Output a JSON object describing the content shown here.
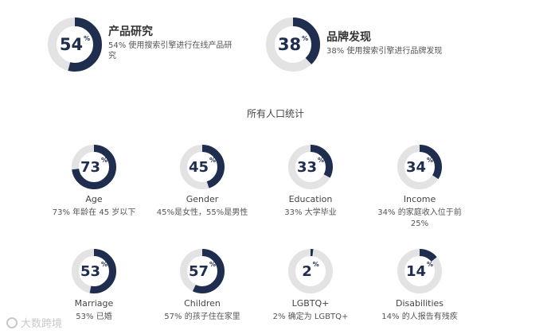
{
  "colors": {
    "accent": "#1f2d4f",
    "track": "#e3e3e3"
  },
  "top_stats": [
    {
      "value": 54,
      "title": "产品研究",
      "desc_line1": "54% 使用搜索引擎进行在线产品研",
      "desc_line2": "究"
    },
    {
      "value": 38,
      "title": "品牌发现",
      "desc_line1": "38% 使用搜索引擎进行品牌发现",
      "desc_line2": ""
    }
  ],
  "section_title": "所有人口统计",
  "stats": [
    {
      "value": 73,
      "label": "Age",
      "desc_line1": "73% 年龄在 45 岁以下",
      "desc_line2": ""
    },
    {
      "value": 45,
      "label": "Gender",
      "desc_line1": "45%是女性，55%是男性",
      "desc_line2": ""
    },
    {
      "value": 33,
      "label": "Education",
      "desc_line1": "33% 大学毕业",
      "desc_line2": ""
    },
    {
      "value": 34,
      "label": "Income",
      "desc_line1": "34% 的家庭收入位于前",
      "desc_line2": "25%"
    },
    {
      "value": 53,
      "label": "Marriage",
      "desc_line1": "53% 已婚",
      "desc_line2": ""
    },
    {
      "value": 57,
      "label": "Children",
      "desc_line1": "57% 的孩子住在家里",
      "desc_line2": ""
    },
    {
      "value": 2,
      "label": "LGBTQ+",
      "desc_line1": "2% 确定为 LGBTQ+",
      "desc_line2": ""
    },
    {
      "value": 14,
      "label": "Disabilities",
      "desc_line1": "14% 的人报告有残疾",
      "desc_line2": ""
    }
  ],
  "watermark": "大数跨境",
  "pct_sign": "%"
}
